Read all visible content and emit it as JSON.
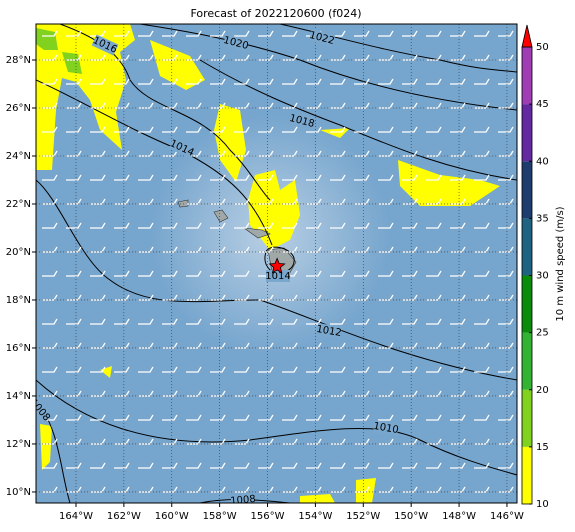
{
  "title": "Forecast of 2022120600 (f024)",
  "map": {
    "xlim": [
      -165.67,
      -145.58
    ],
    "ylim": [
      9.54,
      29.5
    ],
    "xticks": [
      {
        "value": -164,
        "label": "164°W"
      },
      {
        "value": -162,
        "label": "162°W"
      },
      {
        "value": -160,
        "label": "160°W"
      },
      {
        "value": -158,
        "label": "158°W"
      },
      {
        "value": -156,
        "label": "156°W"
      },
      {
        "value": -154,
        "label": "154°W"
      },
      {
        "value": -152,
        "label": "152°W"
      },
      {
        "value": -150,
        "label": "150°W"
      },
      {
        "value": -148,
        "label": "148°W"
      },
      {
        "value": -146,
        "label": "146°W"
      }
    ],
    "yticks": [
      {
        "value": 10,
        "label": "10°N"
      },
      {
        "value": 12,
        "label": "12°N"
      },
      {
        "value": 14,
        "label": "14°N"
      },
      {
        "value": 16,
        "label": "16°N"
      },
      {
        "value": 18,
        "label": "18°N"
      },
      {
        "value": 20,
        "label": "20°N"
      },
      {
        "value": 22,
        "label": "22°N"
      },
      {
        "value": 24,
        "label": "24°N"
      },
      {
        "value": 26,
        "label": "26°N"
      },
      {
        "value": 28,
        "label": "28°N"
      }
    ],
    "grid": true,
    "marker": {
      "lon": -155.6,
      "lat": 19.4,
      "color": "#ff0000"
    },
    "isobars": [
      1016,
      1020,
      1022,
      1018,
      1014,
      1014,
      1012,
      1010,
      1008,
      1008
    ]
  },
  "colorbar": {
    "label": "10 m wind speed (m/s)",
    "lim": [
      10,
      50
    ],
    "ticks": [
      10,
      15,
      20,
      25,
      30,
      35,
      40,
      45,
      50
    ],
    "bins": [
      10,
      15,
      20,
      25,
      30,
      35,
      40,
      45,
      50
    ],
    "colors": [
      "#ffff00",
      "#80d21e",
      "#32b432",
      "#0a8c0a",
      "#1e6482",
      "#1e3c6e",
      "#6428a0",
      "#a03cb4"
    ],
    "extend_color": "#ff0000"
  }
}
